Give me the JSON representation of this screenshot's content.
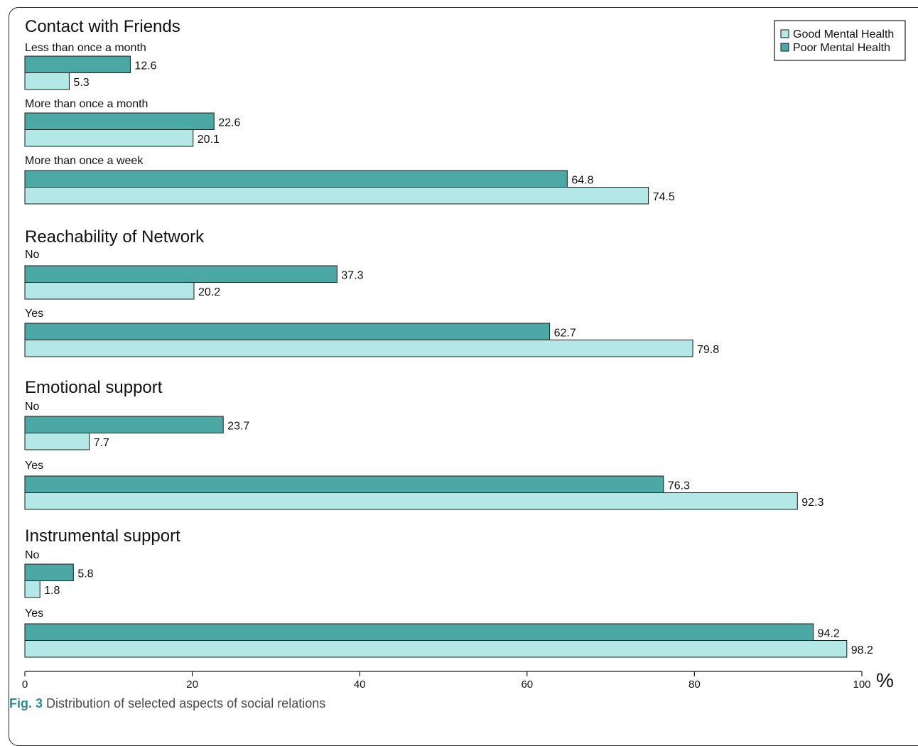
{
  "caption": {
    "label": "Fig. 3",
    "text": "Distribution of selected aspects of social relations"
  },
  "colors": {
    "good": "#b3e8e6",
    "poor": "#4ca8a4",
    "stroke": "#1a1a1a"
  },
  "chart_data": {
    "type": "bar",
    "orientation": "horizontal",
    "title": "",
    "xlabel": "%",
    "xlim": [
      0,
      100
    ],
    "xticks": [
      0,
      20,
      40,
      60,
      80,
      100
    ],
    "grid": false,
    "legend_position": "top-right",
    "series": [
      {
        "name": "Good Mental Health",
        "key": "good"
      },
      {
        "name": "Poor Mental Health",
        "key": "poor"
      }
    ],
    "groups": [
      {
        "title": "Contact with Friends",
        "categories": [
          {
            "label": "Less than once a month",
            "poor": 12.6,
            "good": 5.3
          },
          {
            "label": "More than once a month",
            "poor": 22.6,
            "good": 20.1
          },
          {
            "label": "More than once a week",
            "poor": 64.8,
            "good": 74.5
          }
        ]
      },
      {
        "title": "Reachability of Network",
        "categories": [
          {
            "label": "No",
            "poor": 37.3,
            "good": 20.2
          },
          {
            "label": "Yes",
            "poor": 62.7,
            "good": 79.8
          }
        ]
      },
      {
        "title": "Emotional support",
        "categories": [
          {
            "label": "No",
            "poor": 23.7,
            "good": 7.7
          },
          {
            "label": "Yes",
            "poor": 76.3,
            "good": 92.3
          }
        ]
      },
      {
        "title": "Instrumental support",
        "categories": [
          {
            "label": "No",
            "poor": 5.8,
            "good": 1.8
          },
          {
            "label": "Yes",
            "poor": 94.2,
            "good": 98.2
          }
        ]
      }
    ]
  }
}
